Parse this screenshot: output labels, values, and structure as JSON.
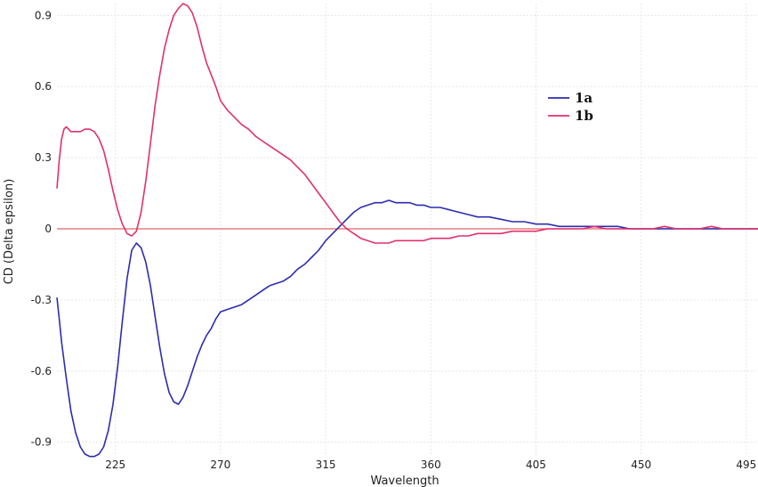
{
  "chart_data": {
    "type": "line",
    "title": "",
    "xlabel": "Wavelength",
    "ylabel": "CD (Delta epsilon)",
    "xlim": [
      200,
      500
    ],
    "ylim": [
      -0.95,
      0.95
    ],
    "x_ticks": [
      225,
      270,
      315,
      360,
      405,
      450,
      495
    ],
    "x_tick_labels": [
      "225",
      "270",
      "315",
      "360",
      "405",
      "450",
      "495"
    ],
    "y_ticks": [
      0.9,
      0.6,
      0.3,
      0,
      -0.3,
      -0.6,
      -0.9
    ],
    "y_tick_labels": [
      "0.9",
      "0.6",
      "0.3",
      "0",
      "-0.3",
      "-0.6",
      "-0.9"
    ],
    "grid": true,
    "legend_position": "top-right",
    "zero_line_color": "#e06666",
    "series": [
      {
        "name": "1a",
        "color": "#2c2cb0",
        "x": [
          200,
          201,
          202,
          204,
          206,
          208,
          210,
          212,
          214,
          216,
          218,
          220,
          222,
          224,
          226,
          228,
          230,
          232,
          234,
          236,
          238,
          240,
          242,
          244,
          246,
          248,
          250,
          252,
          254,
          256,
          258,
          260,
          262,
          264,
          266,
          268,
          270,
          273,
          276,
          279,
          282,
          285,
          288,
          291,
          294,
          297,
          300,
          303,
          306,
          309,
          312,
          315,
          318,
          321,
          324,
          327,
          330,
          333,
          336,
          339,
          342,
          345,
          348,
          351,
          354,
          357,
          360,
          364,
          368,
          372,
          376,
          380,
          385,
          390,
          395,
          400,
          405,
          410,
          415,
          420,
          425,
          430,
          435,
          440,
          445,
          450,
          455,
          460,
          465,
          470,
          475,
          480,
          485,
          490,
          495,
          500
        ],
        "y": [
          -0.29,
          -0.38,
          -0.48,
          -0.63,
          -0.77,
          -0.86,
          -0.92,
          -0.95,
          -0.96,
          -0.96,
          -0.95,
          -0.92,
          -0.85,
          -0.74,
          -0.58,
          -0.39,
          -0.21,
          -0.09,
          -0.06,
          -0.08,
          -0.14,
          -0.24,
          -0.37,
          -0.5,
          -0.61,
          -0.69,
          -0.73,
          -0.74,
          -0.71,
          -0.66,
          -0.6,
          -0.54,
          -0.49,
          -0.45,
          -0.42,
          -0.38,
          -0.35,
          -0.34,
          -0.33,
          -0.32,
          -0.3,
          -0.28,
          -0.26,
          -0.24,
          -0.23,
          -0.22,
          -0.2,
          -0.17,
          -0.15,
          -0.12,
          -0.09,
          -0.05,
          -0.02,
          0.01,
          0.04,
          0.07,
          0.09,
          0.1,
          0.11,
          0.11,
          0.12,
          0.11,
          0.11,
          0.11,
          0.1,
          0.1,
          0.09,
          0.09,
          0.08,
          0.07,
          0.06,
          0.05,
          0.05,
          0.04,
          0.03,
          0.03,
          0.02,
          0.02,
          0.01,
          0.01,
          0.01,
          0.01,
          0.01,
          0.01,
          0.0,
          0.0,
          0.0,
          0.0,
          0.0,
          0.0,
          0.0,
          0.0,
          0.0,
          0.0,
          0.0,
          0.0
        ]
      },
      {
        "name": "1b",
        "color": "#e0306e",
        "x": [
          200,
          201,
          202,
          203,
          204,
          206,
          208,
          210,
          212,
          214,
          216,
          218,
          220,
          222,
          224,
          226,
          228,
          230,
          232,
          234,
          236,
          238,
          240,
          242,
          244,
          246,
          248,
          250,
          252,
          254,
          256,
          258,
          260,
          262,
          264,
          266,
          268,
          270,
          273,
          276,
          279,
          282,
          285,
          288,
          291,
          294,
          297,
          300,
          303,
          306,
          309,
          312,
          315,
          318,
          321,
          324,
          327,
          330,
          333,
          336,
          339,
          342,
          345,
          348,
          351,
          354,
          357,
          360,
          364,
          368,
          372,
          376,
          380,
          385,
          390,
          395,
          400,
          405,
          410,
          415,
          420,
          425,
          430,
          435,
          440,
          445,
          450,
          455,
          460,
          465,
          470,
          475,
          480,
          485,
          490,
          495,
          500
        ],
        "y": [
          0.17,
          0.29,
          0.38,
          0.42,
          0.43,
          0.41,
          0.41,
          0.41,
          0.42,
          0.42,
          0.41,
          0.38,
          0.33,
          0.25,
          0.16,
          0.08,
          0.02,
          -0.02,
          -0.03,
          -0.01,
          0.07,
          0.2,
          0.36,
          0.52,
          0.65,
          0.76,
          0.84,
          0.9,
          0.93,
          0.95,
          0.94,
          0.91,
          0.85,
          0.77,
          0.7,
          0.65,
          0.6,
          0.54,
          0.5,
          0.47,
          0.44,
          0.42,
          0.39,
          0.37,
          0.35,
          0.33,
          0.31,
          0.29,
          0.26,
          0.23,
          0.19,
          0.15,
          0.11,
          0.07,
          0.03,
          0.0,
          -0.02,
          -0.04,
          -0.05,
          -0.06,
          -0.06,
          -0.06,
          -0.05,
          -0.05,
          -0.05,
          -0.05,
          -0.05,
          -0.04,
          -0.04,
          -0.04,
          -0.03,
          -0.03,
          -0.02,
          -0.02,
          -0.02,
          -0.01,
          -0.01,
          -0.01,
          0.0,
          0.0,
          0.0,
          0.0,
          0.01,
          0.0,
          0.0,
          0.0,
          0.0,
          0.0,
          0.01,
          0.0,
          0.0,
          0.0,
          0.01,
          0.0,
          0.0,
          0.0,
          0.0
        ]
      }
    ]
  }
}
